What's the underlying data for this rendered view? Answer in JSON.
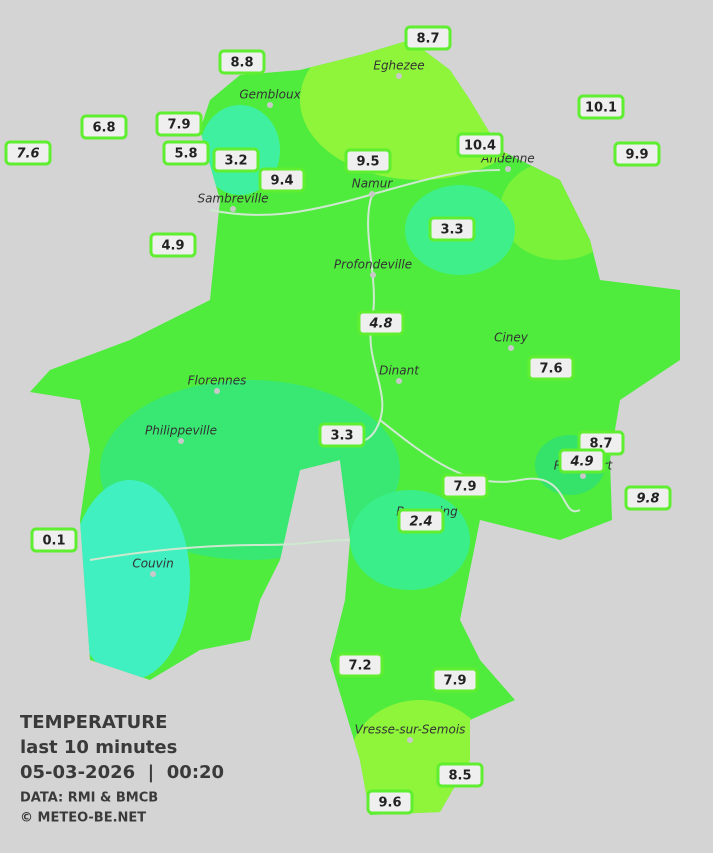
{
  "title": {
    "line1": "TEMPERATURE",
    "line2": "last 10 minutes",
    "line3": "05-03-2026  |  00:20",
    "source": "DATA: RMI & BMCB",
    "copyright": "© METEO-BE.NET"
  },
  "cities": [
    "Eghezee",
    "Gembloux",
    "Andenne",
    "Namur",
    "Sambreville",
    "Profondeville",
    "Ciney",
    "Dinant",
    "Florennes",
    "Philippeville",
    "Rochefort",
    "Beauraing",
    "Couvin",
    "Vresse-sur-Semois"
  ],
  "stations": [
    8.7,
    8.8,
    10.1,
    6.8,
    7.9,
    7.6,
    5.8,
    3.2,
    9.5,
    10.4,
    9.9,
    9.4,
    3.3,
    4.9,
    4.8,
    7.6,
    3.3,
    8.7,
    4.9,
    7.9,
    9.8,
    2.4,
    0.1,
    7.2,
    7.9,
    8.5,
    9.6
  ]
}
